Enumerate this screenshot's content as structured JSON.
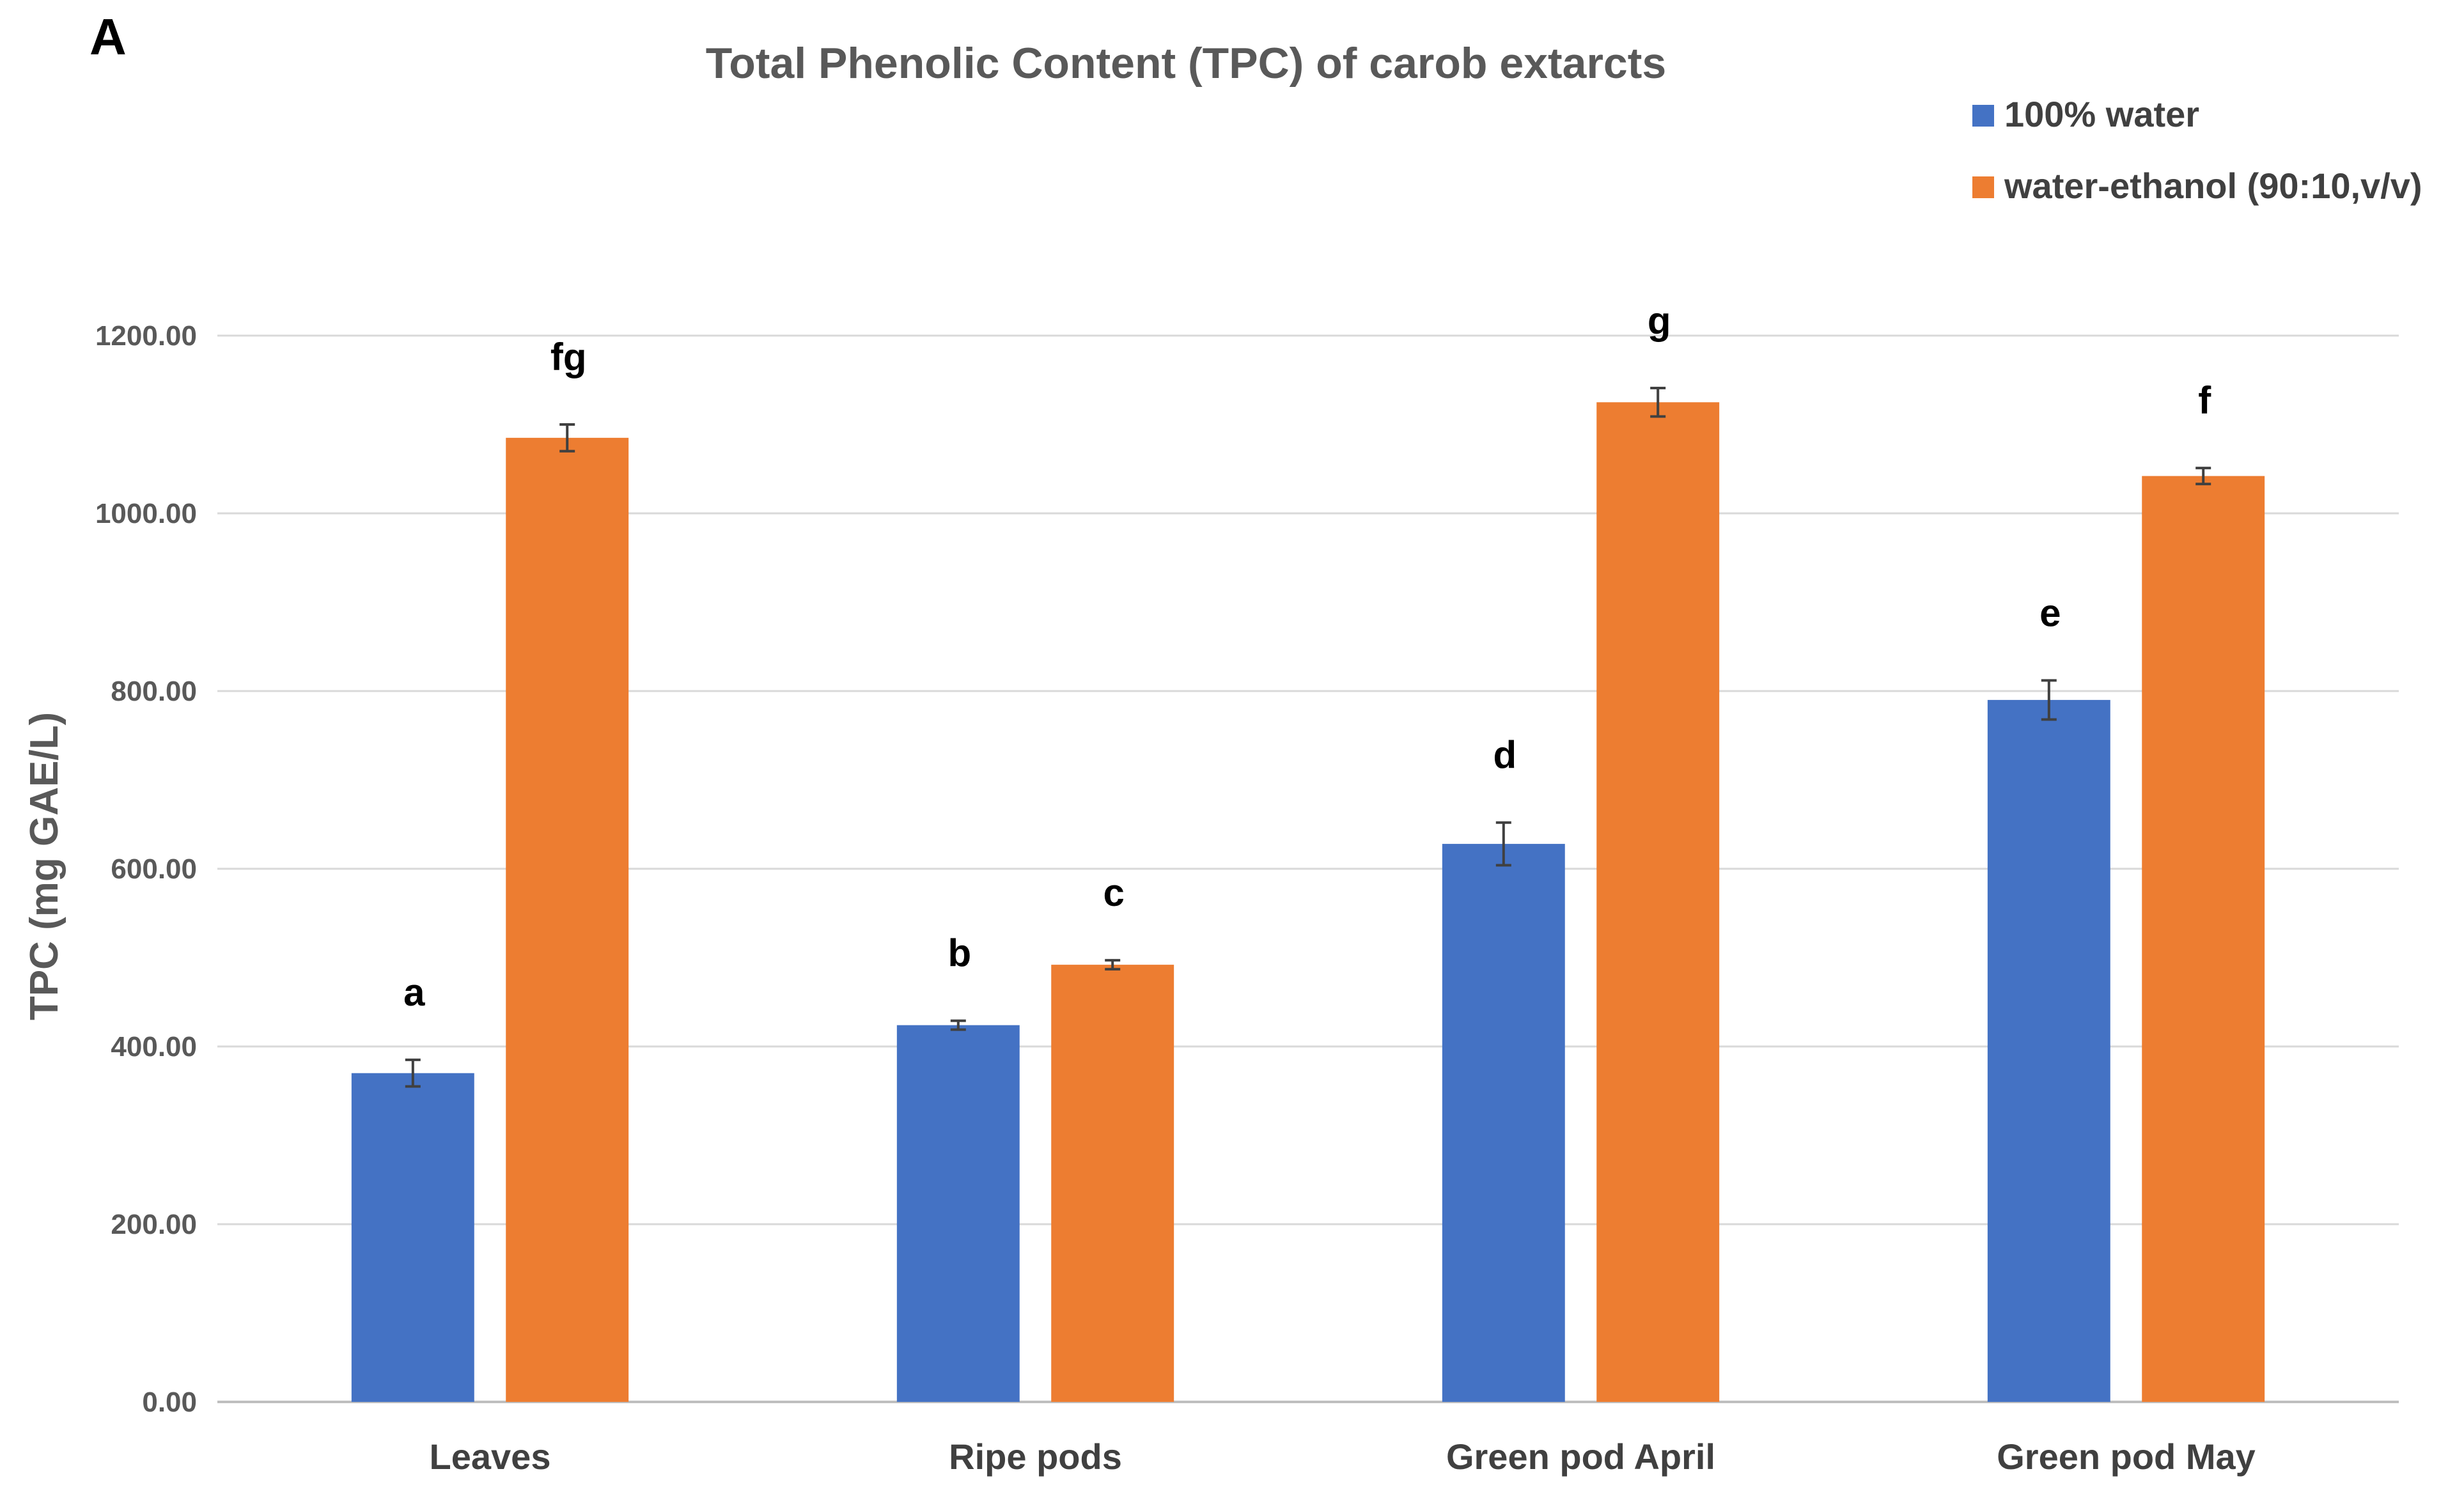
{
  "panel_label": "A",
  "chart_data": {
    "type": "bar",
    "title": "Total Phenolic Content (TPC) of carob extarcts",
    "xlabel": "",
    "ylabel": "TPC (mg GAE/L)",
    "ylim": [
      0,
      1200
    ],
    "yticks": [
      0,
      200,
      400,
      600,
      800,
      1000,
      1200
    ],
    "ytick_labels": [
      "0.00",
      "200.00",
      "400.00",
      "600.00",
      "800.00",
      "1000.00",
      "1200.00"
    ],
    "grid": true,
    "legend_position": "top-right",
    "categories": [
      "Leaves",
      "Ripe pods",
      "Green pod April",
      "Green pod May"
    ],
    "series": [
      {
        "name": "100% water",
        "color": "#4472C4",
        "values": [
          370,
          424,
          628,
          790
        ],
        "errors": [
          15,
          5,
          24,
          22
        ],
        "significance": [
          "a",
          "b",
          "d",
          "e"
        ]
      },
      {
        "name": "water-ethanol (90:10,v/v)",
        "color": "#ED7D31",
        "values": [
          1085,
          492,
          1125,
          1042
        ],
        "errors": [
          15,
          5,
          16,
          9
        ],
        "significance": [
          "fg",
          "c",
          "g",
          "f"
        ]
      }
    ]
  }
}
